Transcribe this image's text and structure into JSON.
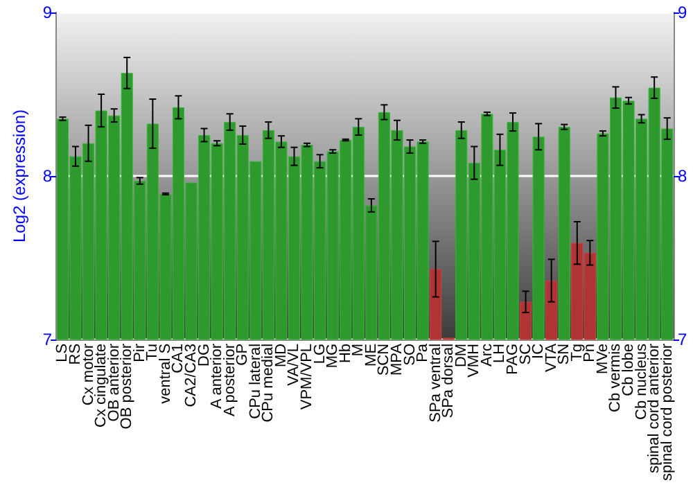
{
  "chart_data": {
    "type": "bar",
    "ylabel": "Log2 (expression)",
    "categories": [
      "LS",
      "RS",
      "Cx motor",
      "Cx cingulate",
      "OB anterior",
      "OB posterior",
      "Pir",
      "Tu",
      "ventral S",
      "CA1",
      "CA2/CA3",
      "DG",
      "A anterior",
      "A posterior",
      "GP",
      "CPu lateral",
      "CPu medial",
      "MD",
      "VA/VL",
      "VPM/VPL",
      "LG",
      "MG",
      "Hb",
      "M",
      "ME",
      "SCN",
      "MPA",
      "SO",
      "Pa",
      "SPa ventral",
      "SPa dorsal",
      "DM",
      "VMH",
      "Arc",
      "LH",
      "PAG",
      "SC",
      "IC",
      "VTA",
      "SN",
      "Tg",
      "Pn",
      "MVe",
      "Cb vermis",
      "Cb lobe",
      "Cb nucleus",
      "spinal cord anterior",
      "spinal cord posterior"
    ],
    "values": [
      8.35,
      8.12,
      8.2,
      8.4,
      8.37,
      8.63,
      7.97,
      8.32,
      7.89,
      8.42,
      7.96,
      8.25,
      8.2,
      8.33,
      8.25,
      8.09,
      8.28,
      8.21,
      8.12,
      8.19,
      8.09,
      8.15,
      8.22,
      8.3,
      7.82,
      8.39,
      8.28,
      8.18,
      8.21,
      7.43,
      7.01,
      8.28,
      8.08,
      8.38,
      8.16,
      8.33,
      7.23,
      8.24,
      7.36,
      8.3,
      7.59,
      7.53,
      8.26,
      8.48,
      8.46,
      8.35,
      8.54,
      8.29
    ],
    "errors": [
      0.01,
      0.06,
      0.11,
      0.1,
      0.04,
      0.095,
      0.02,
      0.15,
      0.005,
      0.07,
      null,
      0.04,
      0.015,
      0.05,
      0.055,
      null,
      0.05,
      0.035,
      0.055,
      0.01,
      0.04,
      0.01,
      0.005,
      0.05,
      0.04,
      0.045,
      0.06,
      0.04,
      0.01,
      0.17,
      null,
      0.05,
      0.1,
      0.01,
      0.095,
      0.055,
      0.065,
      0.08,
      0.13,
      0.015,
      0.13,
      0.075,
      0.015,
      0.065,
      0.02,
      0.025,
      0.065,
      0.065
    ],
    "colors": [
      "#2e9a2e",
      "#2e9a2e",
      "#2e9a2e",
      "#2e9a2e",
      "#2e9a2e",
      "#2e9a2e",
      "#2e9a2e",
      "#2e9a2e",
      "#2e9a2e",
      "#2e9a2e",
      "#2e9a2e",
      "#2e9a2e",
      "#2e9a2e",
      "#2e9a2e",
      "#2e9a2e",
      "#2e9a2e",
      "#2e9a2e",
      "#2e9a2e",
      "#2e9a2e",
      "#2e9a2e",
      "#2e9a2e",
      "#2e9a2e",
      "#2e9a2e",
      "#2e9a2e",
      "#2e9a2e",
      "#2e9a2e",
      "#2e9a2e",
      "#2e9a2e",
      "#2e9a2e",
      "#b03434",
      "#b03434",
      "#2e9a2e",
      "#2e9a2e",
      "#2e9a2e",
      "#2e9a2e",
      "#2e9a2e",
      "#b03434",
      "#2e9a2e",
      "#b03434",
      "#2e9a2e",
      "#b03434",
      "#b03434",
      "#2e9a2e",
      "#2e9a2e",
      "#2e9a2e",
      "#2e9a2e",
      "#2e9a2e",
      "#2e9a2e"
    ],
    "ylim": [
      7,
      9
    ],
    "yticks": [
      7,
      8,
      9
    ],
    "y2lim": [
      7,
      9
    ],
    "y2ticks": [
      7,
      8,
      9
    ],
    "grid": "y"
  }
}
